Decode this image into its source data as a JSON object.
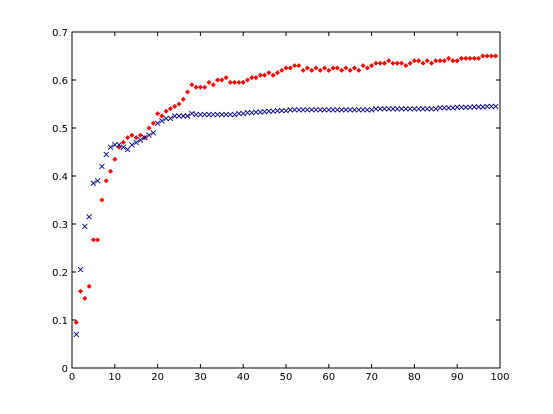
{
  "chart_data": {
    "type": "scatter",
    "x": [
      1,
      2,
      3,
      4,
      5,
      6,
      7,
      8,
      9,
      10,
      11,
      12,
      13,
      14,
      15,
      16,
      17,
      18,
      19,
      20,
      21,
      22,
      23,
      24,
      25,
      26,
      27,
      28,
      29,
      30,
      31,
      32,
      33,
      34,
      35,
      36,
      37,
      38,
      39,
      40,
      41,
      42,
      43,
      44,
      45,
      46,
      47,
      48,
      49,
      50,
      51,
      52,
      53,
      54,
      55,
      56,
      57,
      58,
      59,
      60,
      61,
      62,
      63,
      64,
      65,
      66,
      67,
      68,
      69,
      70,
      71,
      72,
      73,
      74,
      75,
      76,
      77,
      78,
      79,
      80,
      81,
      82,
      83,
      84,
      85,
      86,
      87,
      88,
      89,
      90,
      91,
      92,
      93,
      94,
      95,
      96,
      97,
      98,
      99
    ],
    "series": [
      {
        "color": "#ff0000",
        "marker": "diamond",
        "values": [
          0.095,
          0.16,
          0.145,
          0.17,
          0.267,
          0.267,
          0.35,
          0.39,
          0.41,
          0.435,
          0.46,
          0.47,
          0.48,
          0.485,
          0.48,
          0.485,
          0.48,
          0.5,
          0.51,
          0.53,
          0.525,
          0.535,
          0.54,
          0.545,
          0.55,
          0.56,
          0.575,
          0.59,
          0.585,
          0.585,
          0.585,
          0.595,
          0.59,
          0.6,
          0.6,
          0.605,
          0.595,
          0.595,
          0.595,
          0.595,
          0.6,
          0.605,
          0.605,
          0.61,
          0.61,
          0.615,
          0.61,
          0.615,
          0.62,
          0.625,
          0.625,
          0.63,
          0.63,
          0.62,
          0.625,
          0.62,
          0.625,
          0.62,
          0.625,
          0.62,
          0.625,
          0.625,
          0.62,
          0.625,
          0.62,
          0.625,
          0.62,
          0.63,
          0.625,
          0.63,
          0.635,
          0.635,
          0.635,
          0.64,
          0.635,
          0.635,
          0.635,
          0.63,
          0.635,
          0.64,
          0.64,
          0.635,
          0.64,
          0.635,
          0.64,
          0.64,
          0.64,
          0.645,
          0.64,
          0.64,
          0.645,
          0.645,
          0.645,
          0.645,
          0.645,
          0.65,
          0.65,
          0.65,
          0.65
        ]
      },
      {
        "color": "#00008b",
        "marker": "x",
        "values": [
          0.07,
          0.205,
          0.295,
          0.315,
          0.385,
          0.39,
          0.42,
          0.445,
          0.46,
          0.465,
          0.465,
          0.46,
          0.455,
          0.465,
          0.47,
          0.475,
          0.48,
          0.485,
          0.49,
          0.51,
          0.515,
          0.52,
          0.52,
          0.525,
          0.525,
          0.525,
          0.525,
          0.53,
          0.528,
          0.528,
          0.528,
          0.528,
          0.528,
          0.528,
          0.528,
          0.528,
          0.528,
          0.528,
          0.53,
          0.53,
          0.532,
          0.532,
          0.533,
          0.533,
          0.534,
          0.535,
          0.535,
          0.536,
          0.536,
          0.536,
          0.538,
          0.538,
          0.538,
          0.538,
          0.538,
          0.538,
          0.538,
          0.538,
          0.538,
          0.538,
          0.538,
          0.538,
          0.538,
          0.538,
          0.538,
          0.538,
          0.538,
          0.538,
          0.538,
          0.538,
          0.54,
          0.54,
          0.54,
          0.54,
          0.54,
          0.54,
          0.54,
          0.54,
          0.54,
          0.54,
          0.54,
          0.54,
          0.54,
          0.54,
          0.54,
          0.542,
          0.542,
          0.542,
          0.542,
          0.543,
          0.543,
          0.543,
          0.543,
          0.544,
          0.544,
          0.544,
          0.545,
          0.545,
          0.545
        ]
      }
    ],
    "xlim": [
      0,
      100
    ],
    "xticks": [
      0,
      10,
      20,
      30,
      40,
      50,
      60,
      70,
      80,
      90,
      100
    ],
    "ylim": [
      0,
      0.7
    ],
    "yticks": [
      0,
      0.1,
      0.2,
      0.3,
      0.4,
      0.5,
      0.6,
      0.7
    ]
  }
}
